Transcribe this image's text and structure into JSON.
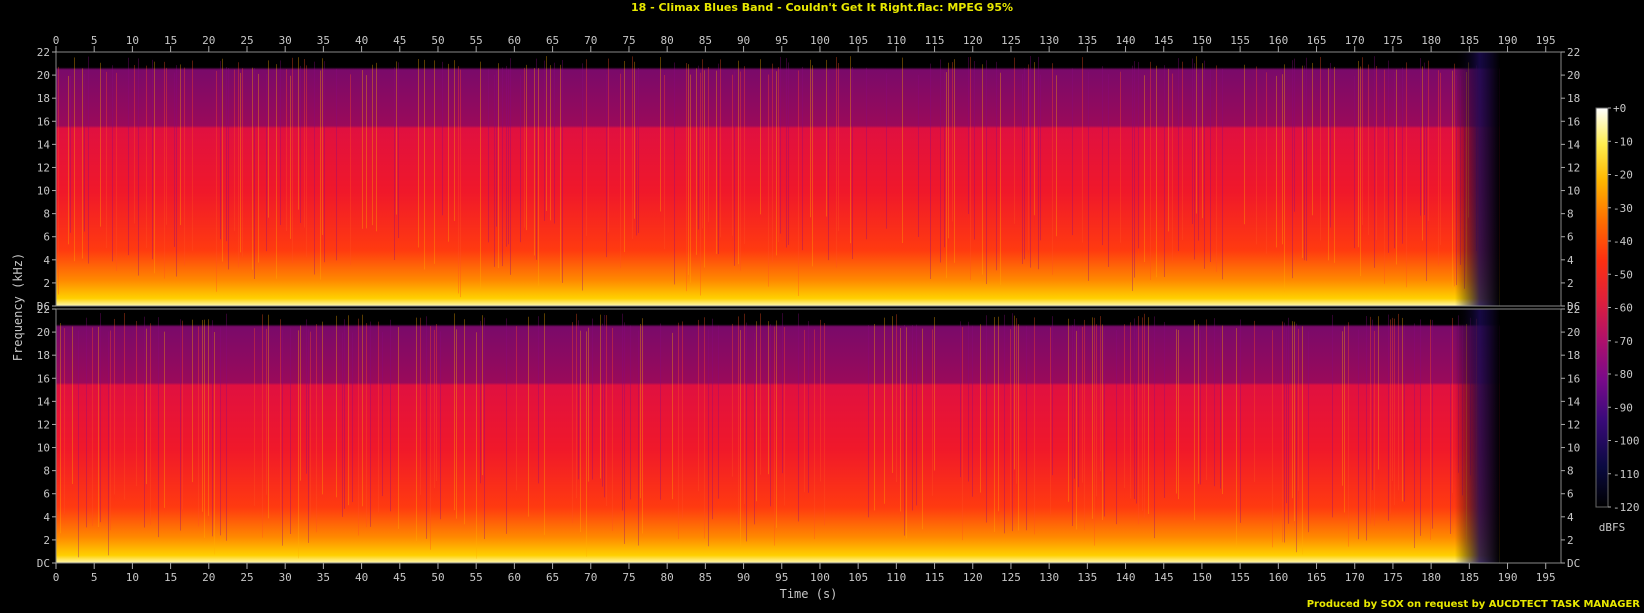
{
  "title": "18 - Climax Blues Band - Couldn't Get It Right.flac: MPEG 95%",
  "footer": "Produced by SOX on request by AUCDTECT TASK MANAGER",
  "chart_data": {
    "type": "heatmap",
    "subtype": "spectrogram",
    "channels": 2,
    "xlabel": "Time (s)",
    "ylabel": "Frequency (kHz)",
    "xlim": [
      0,
      197
    ],
    "ylim_khz": [
      0,
      22
    ],
    "x_ticks": [
      0,
      5,
      10,
      15,
      20,
      25,
      30,
      35,
      40,
      45,
      50,
      55,
      60,
      65,
      70,
      75,
      80,
      85,
      90,
      95,
      100,
      105,
      110,
      115,
      120,
      125,
      130,
      135,
      140,
      145,
      150,
      155,
      160,
      165,
      170,
      175,
      180,
      185,
      190,
      195
    ],
    "y_tick_labels": [
      "DC",
      "2",
      "4",
      "6",
      "8",
      "10",
      "12",
      "14",
      "16",
      "18",
      "20",
      "22"
    ],
    "y_tick_values_khz": [
      0,
      2,
      4,
      6,
      8,
      10,
      12,
      14,
      16,
      18,
      20,
      22
    ],
    "colorbar": {
      "label": "dBFS",
      "ticks": [
        "+0",
        "-10",
        "-20",
        "-30",
        "-40",
        "-50",
        "-60",
        "-70",
        "-80",
        "-90",
        "-100",
        "-110",
        "-120"
      ],
      "range_dbfs": [
        -120,
        0
      ],
      "colors": [
        "#000000",
        "#0a0a40",
        "#3a0a7a",
        "#7a0a8a",
        "#b0106a",
        "#e0203a",
        "#ff3010",
        "#ff7000",
        "#ffb800",
        "#ffee50",
        "#ffffff"
      ]
    },
    "observations": {
      "audio_end_s": 189,
      "lowpass_cutoff_khz": 16,
      "sparse_content_up_to_khz": 20.5
    }
  }
}
